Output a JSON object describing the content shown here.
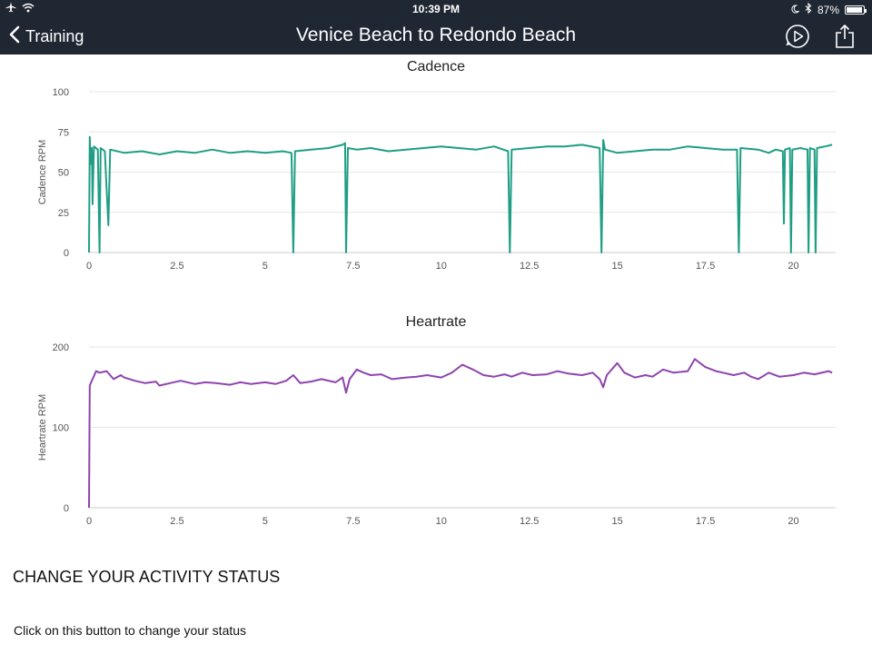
{
  "status_bar": {
    "time": "10:39 PM",
    "battery": "87%",
    "battery_level": 0.87,
    "icons": [
      "airplane-icon",
      "wifi-icon",
      "moon-icon",
      "bluetooth-icon",
      "battery-icon"
    ]
  },
  "nav": {
    "back_label": "Training",
    "title": "Venice Beach to Redondo Beach",
    "icons": [
      "play-icon",
      "share-icon"
    ]
  },
  "colors": {
    "bar_bg": "#1f2733",
    "cadence": "#1f9e84",
    "heartrate": "#8e44ad",
    "grid": "#e6e6e6",
    "axis_text": "#555555"
  },
  "chart_data": [
    {
      "type": "line",
      "title": "Cadence",
      "xlabel": "",
      "ylabel": "Cadence RPM",
      "xlim": [
        0,
        21.2
      ],
      "ylim": [
        0,
        100
      ],
      "x_ticks": [
        "0",
        "2.5",
        "5",
        "7.5",
        "10",
        "12.5",
        "15",
        "17.5",
        "20"
      ],
      "y_ticks": [
        "0",
        "25",
        "50",
        "75",
        "100"
      ],
      "grid": true,
      "series": [
        {
          "color": "#1f9e84",
          "points": [
            [
              0,
              0
            ],
            [
              0.02,
              72
            ],
            [
              0.05,
              55
            ],
            [
              0.08,
              65
            ],
            [
              0.1,
              30
            ],
            [
              0.14,
              66
            ],
            [
              0.25,
              64
            ],
            [
              0.3,
              0
            ],
            [
              0.33,
              65
            ],
            [
              0.45,
              63
            ],
            [
              0.55,
              17
            ],
            [
              0.6,
              64
            ],
            [
              1,
              62
            ],
            [
              1.5,
              63
            ],
            [
              2,
              61
            ],
            [
              2.5,
              63
            ],
            [
              3,
              62
            ],
            [
              3.5,
              64
            ],
            [
              4,
              62
            ],
            [
              4.5,
              63
            ],
            [
              5,
              62
            ],
            [
              5.5,
              63
            ],
            [
              5.75,
              62
            ],
            [
              5.8,
              0
            ],
            [
              5.85,
              63
            ],
            [
              6.3,
              64
            ],
            [
              6.8,
              65
            ],
            [
              7.2,
              67
            ],
            [
              7.27,
              68
            ],
            [
              7.3,
              0
            ],
            [
              7.35,
              65
            ],
            [
              7.6,
              64
            ],
            [
              8,
              65
            ],
            [
              8.5,
              63
            ],
            [
              9,
              64
            ],
            [
              9.5,
              65
            ],
            [
              10,
              66
            ],
            [
              10.5,
              65
            ],
            [
              11,
              64
            ],
            [
              11.5,
              66
            ],
            [
              11.9,
              63
            ],
            [
              11.95,
              0
            ],
            [
              12,
              64
            ],
            [
              12.5,
              65
            ],
            [
              13,
              66
            ],
            [
              13.5,
              66
            ],
            [
              14,
              67
            ],
            [
              14.5,
              65
            ],
            [
              14.55,
              0
            ],
            [
              14.6,
              70
            ],
            [
              14.65,
              64
            ],
            [
              15,
              62
            ],
            [
              15.5,
              63
            ],
            [
              16,
              64
            ],
            [
              16.5,
              64
            ],
            [
              17,
              66
            ],
            [
              17.5,
              65
            ],
            [
              18,
              64
            ],
            [
              18.4,
              64
            ],
            [
              18.45,
              0
            ],
            [
              18.5,
              65
            ],
            [
              19,
              64
            ],
            [
              19.3,
              62
            ],
            [
              19.5,
              64
            ],
            [
              19.7,
              63
            ],
            [
              19.73,
              18
            ],
            [
              19.76,
              64
            ],
            [
              19.9,
              65
            ],
            [
              19.93,
              0
            ],
            [
              19.97,
              64
            ],
            [
              20.2,
              65
            ],
            [
              20.4,
              64
            ],
            [
              20.43,
              0
            ],
            [
              20.47,
              65
            ],
            [
              20.6,
              64
            ],
            [
              20.63,
              0
            ],
            [
              20.67,
              65
            ],
            [
              20.9,
              66
            ],
            [
              21.1,
              67
            ]
          ]
        }
      ]
    },
    {
      "type": "line",
      "title": "Heartrate",
      "xlabel": "",
      "ylabel": "Heartrate RPM",
      "xlim": [
        0,
        21.2
      ],
      "ylim": [
        0,
        200
      ],
      "x_ticks": [
        "0",
        "2.5",
        "5",
        "7.5",
        "10",
        "12.5",
        "15",
        "17.5",
        "20"
      ],
      "y_ticks": [
        "0",
        "100",
        "200"
      ],
      "grid": true,
      "series": [
        {
          "color": "#8e44ad",
          "points": [
            [
              0,
              0
            ],
            [
              0.02,
              152
            ],
            [
              0.1,
              160
            ],
            [
              0.2,
              170
            ],
            [
              0.3,
              168
            ],
            [
              0.5,
              170
            ],
            [
              0.7,
              160
            ],
            [
              0.9,
              165
            ],
            [
              1,
              162
            ],
            [
              1.3,
              158
            ],
            [
              1.6,
              155
            ],
            [
              1.9,
              157
            ],
            [
              2,
              152
            ],
            [
              2.3,
              155
            ],
            [
              2.6,
              158
            ],
            [
              3,
              154
            ],
            [
              3.3,
              156
            ],
            [
              3.6,
              155
            ],
            [
              4,
              153
            ],
            [
              4.3,
              156
            ],
            [
              4.6,
              154
            ],
            [
              5,
              156
            ],
            [
              5.3,
              154
            ],
            [
              5.6,
              158
            ],
            [
              5.8,
              165
            ],
            [
              6,
              155
            ],
            [
              6.3,
              157
            ],
            [
              6.6,
              160
            ],
            [
              7,
              156
            ],
            [
              7.2,
              162
            ],
            [
              7.3,
              143
            ],
            [
              7.4,
              160
            ],
            [
              7.6,
              172
            ],
            [
              7.8,
              168
            ],
            [
              8,
              165
            ],
            [
              8.3,
              166
            ],
            [
              8.6,
              160
            ],
            [
              9,
              162
            ],
            [
              9.3,
              163
            ],
            [
              9.6,
              165
            ],
            [
              10,
              162
            ],
            [
              10.3,
              168
            ],
            [
              10.6,
              178
            ],
            [
              10.9,
              172
            ],
            [
              11.2,
              165
            ],
            [
              11.5,
              163
            ],
            [
              11.8,
              166
            ],
            [
              12,
              163
            ],
            [
              12.3,
              168
            ],
            [
              12.6,
              165
            ],
            [
              13,
              166
            ],
            [
              13.3,
              170
            ],
            [
              13.6,
              167
            ],
            [
              14,
              165
            ],
            [
              14.3,
              168
            ],
            [
              14.5,
              160
            ],
            [
              14.6,
              150
            ],
            [
              14.7,
              165
            ],
            [
              15,
              180
            ],
            [
              15.2,
              168
            ],
            [
              15.5,
              162
            ],
            [
              15.8,
              165
            ],
            [
              16,
              163
            ],
            [
              16.3,
              172
            ],
            [
              16.6,
              168
            ],
            [
              17,
              170
            ],
            [
              17.2,
              185
            ],
            [
              17.5,
              175
            ],
            [
              17.8,
              170
            ],
            [
              18,
              168
            ],
            [
              18.3,
              165
            ],
            [
              18.6,
              168
            ],
            [
              18.8,
              163
            ],
            [
              19,
              160
            ],
            [
              19.3,
              168
            ],
            [
              19.6,
              163
            ],
            [
              20,
              165
            ],
            [
              20.3,
              168
            ],
            [
              20.6,
              166
            ],
            [
              21,
              170
            ],
            [
              21.1,
              168
            ]
          ]
        }
      ]
    }
  ],
  "section": {
    "heading": "CHANGE YOUR ACTIVITY STATUS",
    "text": "Click on this button to change your status"
  }
}
